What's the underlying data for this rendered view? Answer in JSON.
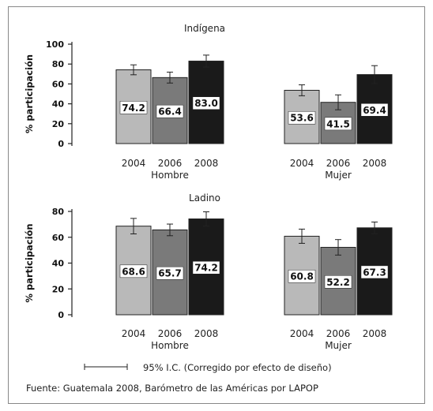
{
  "chart_data": [
    {
      "type": "bar",
      "title": "Indígena",
      "ylabel": "% participación",
      "ylim": [
        0,
        100
      ],
      "yticks": [
        0,
        20,
        40,
        60,
        80,
        100
      ],
      "groups": [
        {
          "label": "Hombre",
          "categories": [
            "2004",
            "2006",
            "2008"
          ],
          "values": [
            74.2,
            66.4,
            83.0
          ],
          "labels": [
            "74.2",
            "66.4",
            "83.0"
          ]
        },
        {
          "label": "Mujer",
          "categories": [
            "2004",
            "2006",
            "2008"
          ],
          "values": [
            53.6,
            41.5,
            69.4
          ],
          "labels": [
            "53.6",
            "41.5",
            "69.4"
          ]
        }
      ],
      "bar_colors": [
        "#b9b9b9",
        "#7a7a7a",
        "#1a1a1a"
      ]
    },
    {
      "type": "bar",
      "title": "Ladino",
      "ylabel": "% participación",
      "ylim": [
        0,
        80
      ],
      "yticks": [
        0,
        20,
        40,
        60,
        80
      ],
      "groups": [
        {
          "label": "Hombre",
          "categories": [
            "2004",
            "2006",
            "2008"
          ],
          "values": [
            68.6,
            65.7,
            74.2
          ],
          "labels": [
            "68.6",
            "65.7",
            "74.2"
          ]
        },
        {
          "label": "Mujer",
          "categories": [
            "2004",
            "2006",
            "2008"
          ],
          "values": [
            60.8,
            52.2,
            67.3
          ],
          "labels": [
            "60.8",
            "52.2",
            "67.3"
          ]
        }
      ],
      "bar_colors": [
        "#b9b9b9",
        "#7a7a7a",
        "#1a1a1a"
      ]
    }
  ],
  "legend": {
    "label": "95% I.C. (Corregido por efecto de diseño)"
  },
  "source": "Fuente: Guatemala 2008, Barómetro de las Américas por LAPOP"
}
